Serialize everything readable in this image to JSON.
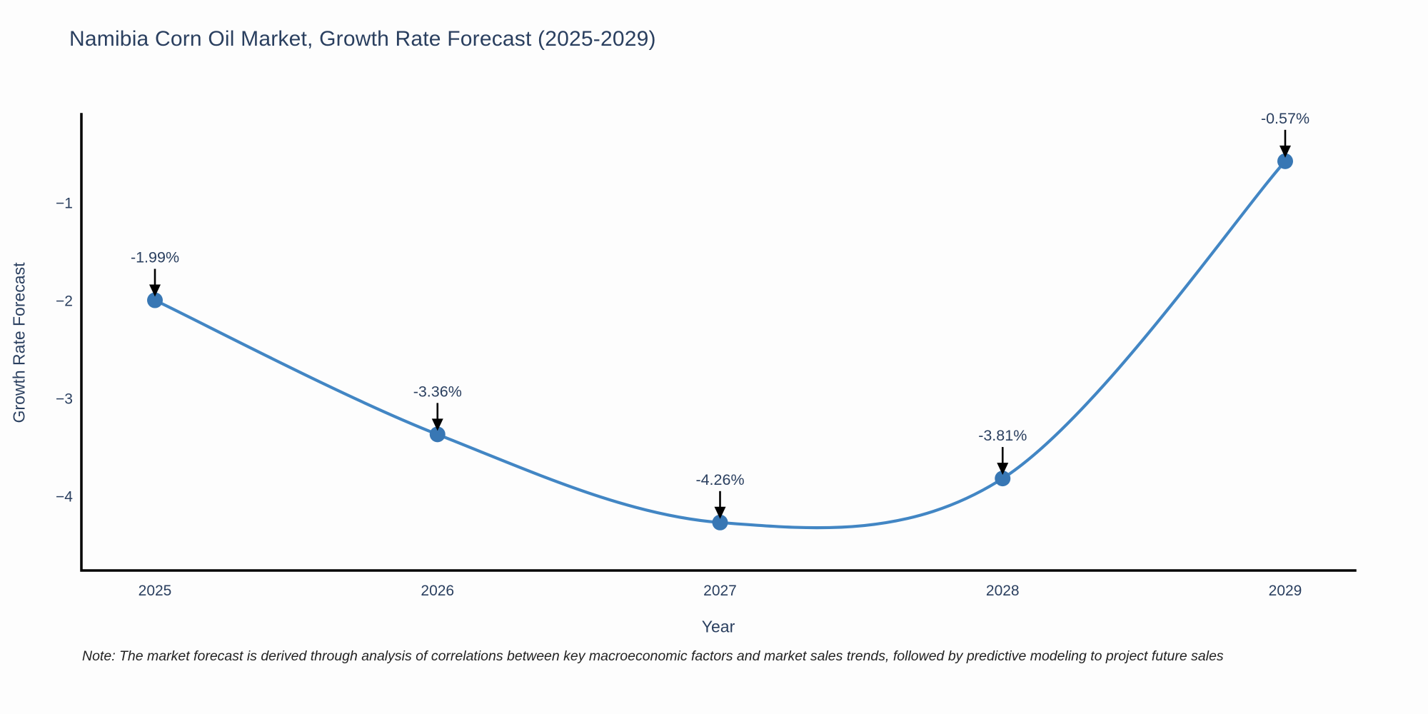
{
  "figure": {
    "background": "#fdfdfd",
    "note": "Note: The market forecast is derived through analysis of correlations between key macroeconomic factors and market sales trends, followed by predictive modeling to project future sales"
  },
  "chart_data": {
    "type": "line",
    "line_shape": "spline",
    "title": "Namibia Corn Oil Market, Growth Rate Forecast (2025-2029)",
    "xlabel": "Year",
    "ylabel": "Growth Rate Forecast",
    "categories": [
      "2025",
      "2026",
      "2027",
      "2028",
      "2029"
    ],
    "values": [
      -1.99,
      -3.36,
      -4.26,
      -3.81,
      -0.57
    ],
    "point_labels": [
      "-1.99%",
      "-3.36%",
      "-4.26%",
      "-3.81%",
      "-0.57%"
    ],
    "ytick_values": [
      -1,
      -2,
      -3,
      -4
    ],
    "ytick_labels": [
      "−1",
      "−2",
      "−3",
      "−4"
    ],
    "ylim": [
      -4.75,
      -0.09
    ],
    "grid": false,
    "legend": "none",
    "annotations_have_arrows": true,
    "colors": {
      "line": "#4286c4",
      "marker": "#3877b4",
      "axis_line": "#000000",
      "axis_text": "#2a3f5f",
      "title_text": "#2a3f5f",
      "annotation_text": "#2a3f5f",
      "arrow": "#000000",
      "note_text": "#222222"
    }
  }
}
